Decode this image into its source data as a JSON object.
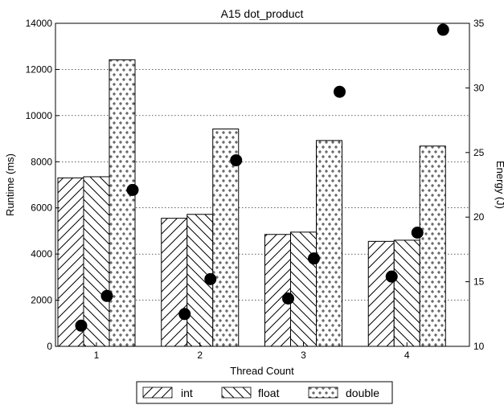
{
  "chart_data": {
    "type": "bar",
    "title": "A15 dot_product",
    "xlabel": "Thread Count",
    "ylabel": "Runtime (ms)",
    "y2label": "Energy (J)",
    "categories": [
      "1",
      "2",
      "3",
      "4"
    ],
    "ylim": [
      0,
      14000
    ],
    "y2lim": [
      10,
      35
    ],
    "yticks": [
      0,
      2000,
      4000,
      6000,
      8000,
      10000,
      12000,
      14000
    ],
    "y2ticks": [
      10,
      15,
      20,
      25,
      30,
      35
    ],
    "grid": "horizontal dotted",
    "legend_placement": "bottom-center",
    "series": [
      {
        "name": "int",
        "axis": "left",
        "kind": "bar",
        "hatch": "forward-diagonal",
        "values": [
          7300,
          5550,
          4850,
          4550
        ]
      },
      {
        "name": "float",
        "axis": "left",
        "kind": "bar",
        "hatch": "back-diagonal",
        "values": [
          7350,
          5720,
          4950,
          4600
        ]
      },
      {
        "name": "double",
        "axis": "left",
        "kind": "bar",
        "hatch": "dots",
        "values": [
          12420,
          9420,
          8920,
          8680
        ]
      }
    ],
    "energy_points": {
      "axis": "right",
      "kind": "scatter",
      "marker_color": "#000000",
      "points": [
        {
          "category": "1",
          "series": "int",
          "value": 11.6
        },
        {
          "category": "1",
          "series": "float",
          "value": 13.9
        },
        {
          "category": "1",
          "series": "double",
          "value": 22.1
        },
        {
          "category": "2",
          "series": "int",
          "value": 12.5
        },
        {
          "category": "2",
          "series": "float",
          "value": 15.2
        },
        {
          "category": "2",
          "series": "double",
          "value": 24.4
        },
        {
          "category": "3",
          "series": "int",
          "value": 13.7
        },
        {
          "category": "3",
          "series": "float",
          "value": 16.8
        },
        {
          "category": "3",
          "series": "double",
          "value": 29.7
        },
        {
          "category": "4",
          "series": "int",
          "value": 15.4
        },
        {
          "category": "4",
          "series": "float",
          "value": 18.8
        },
        {
          "category": "4",
          "series": "double",
          "value": 34.5
        }
      ]
    }
  }
}
